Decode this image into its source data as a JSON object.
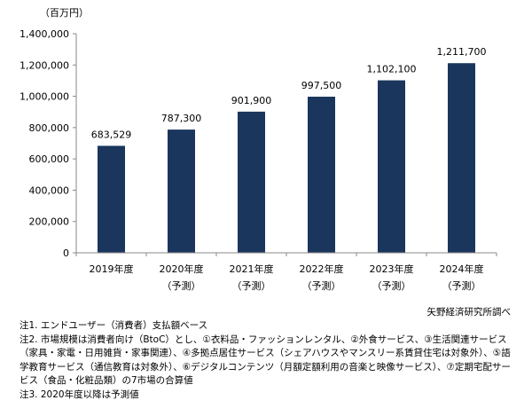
{
  "chart_data": {
    "type": "bar",
    "unit_label": "（百万円）",
    "categories": [
      {
        "year": "2019年度",
        "sub": ""
      },
      {
        "year": "2020年度",
        "sub": "（予測）"
      },
      {
        "year": "2021年度",
        "sub": "（予測）"
      },
      {
        "year": "2022年度",
        "sub": "（予測）"
      },
      {
        "year": "2023年度",
        "sub": "（予測）"
      },
      {
        "year": "2024年度",
        "sub": "（予測）"
      }
    ],
    "values": [
      683529,
      787300,
      901900,
      997500,
      1102100,
      1211700
    ],
    "value_labels": [
      "683,529",
      "787,300",
      "901,900",
      "997,500",
      "1,102,100",
      "1,211,700"
    ],
    "ylim": [
      0,
      1400000
    ],
    "yticks": [
      0,
      200000,
      400000,
      600000,
      800000,
      1000000,
      1200000,
      1400000
    ],
    "ytick_labels": [
      "0",
      "200,000",
      "400,000",
      "600,000",
      "800,000",
      "1,000,000",
      "1,200,000",
      "1,400,000"
    ],
    "bar_color": "#1b365d",
    "grid": false
  },
  "source": "矢野経済研究所調べ",
  "notes": [
    "注1. エンドユーザー（消費者）支払額ベース",
    "注2. 市場規模は消費者向け（BtoC）とし、①衣料品・ファッションレンタル、②外食サービス、③生活関連サービス（家具・家電・日用雑貨・家事関連）、④多拠点居住サービス（シェアハウスやマンスリー系賃貸住宅は対象外）、⑤語学教育サービス（通信教育は対象外）、⑥デジタルコンテンツ（月額定額利用の音楽と映像サービス）、⑦定期宅配サービス（食品・化粧品類）の7市場の合算値",
    "注3. 2020年度以降は予測値"
  ]
}
